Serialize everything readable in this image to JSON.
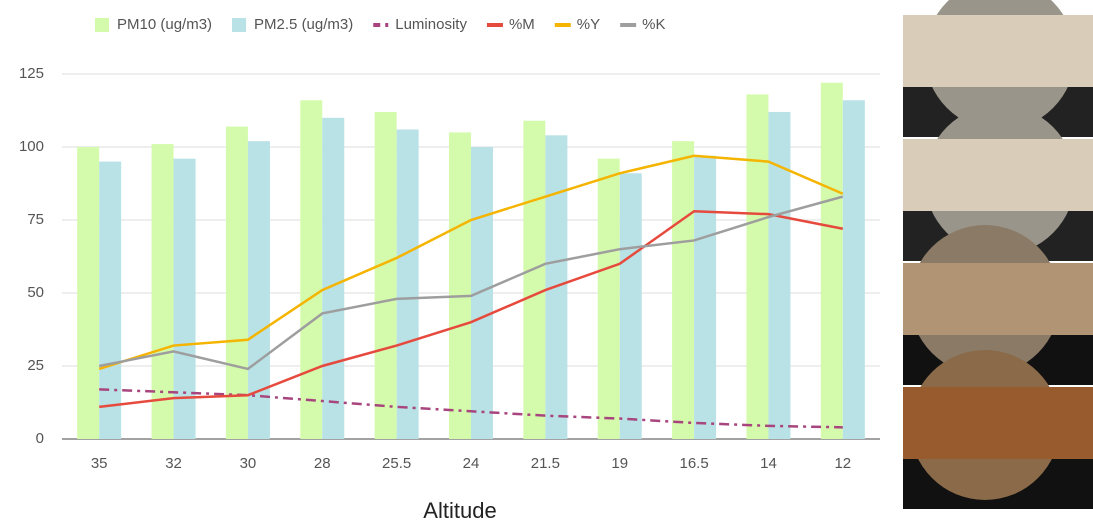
{
  "chart_data": {
    "type": "bar",
    "x_label": "Altitude",
    "categories": [
      "35",
      "32",
      "30",
      "28",
      "25.5",
      "24",
      "21.5",
      "19",
      "16.5",
      "14",
      "12"
    ],
    "series": [
      {
        "name": "PM10 (ug/m3)",
        "type": "bar",
        "color": "#d4fbab",
        "values": [
          100,
          101,
          107,
          116,
          112,
          105,
          109,
          96,
          102,
          118,
          122
        ]
      },
      {
        "name": "PM2.5 (ug/m3)",
        "type": "bar",
        "color": "#b8e2e6",
        "values": [
          95,
          96,
          102,
          110,
          106,
          100,
          104,
          91,
          97,
          112,
          116
        ]
      },
      {
        "name": "Luminosity",
        "type": "line",
        "dash": "dash-dot",
        "color": "#a8457e",
        "values": [
          17,
          16,
          15,
          13,
          11,
          9.5,
          8,
          7,
          5.5,
          4.5,
          4
        ]
      },
      {
        "name": "%M",
        "type": "line",
        "color": "#e64a3d",
        "values": [
          11,
          14,
          15,
          25,
          32,
          40,
          51,
          60,
          78,
          77,
          72
        ]
      },
      {
        "name": "%Y",
        "type": "line",
        "color": "#f4b400",
        "values": [
          24,
          32,
          34,
          51,
          62,
          75,
          83,
          91,
          97,
          95,
          84
        ]
      },
      {
        "name": "%K",
        "type": "line",
        "color": "#9e9e9e",
        "values": [
          25,
          30,
          24,
          43,
          48,
          49,
          60,
          65,
          68,
          76,
          83
        ]
      }
    ],
    "ylim": [
      0,
      125
    ],
    "yticks": [
      0,
      25,
      50,
      75,
      100,
      125
    ],
    "grid": true
  }
}
